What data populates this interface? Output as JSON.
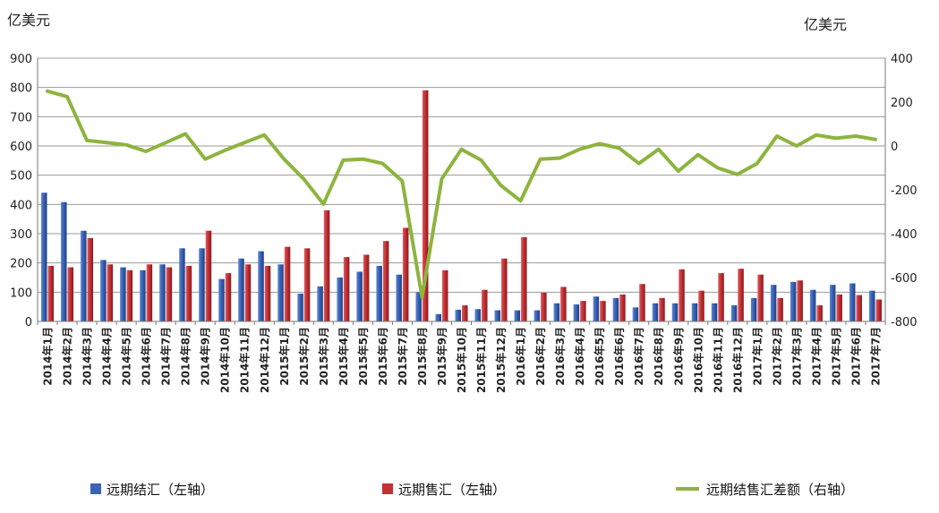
{
  "chart_data": {
    "type": "bar",
    "left_unit": "亿美元",
    "right_unit": "亿美元",
    "categories": [
      "2014年1月",
      "2014年2月",
      "2014年3月",
      "2014年4月",
      "2014年5月",
      "2014年6月",
      "2014年7月",
      "2014年8月",
      "2014年9月",
      "2014年10月",
      "2014年11月",
      "2014年12月",
      "2015年1月",
      "2015年2月",
      "2015年3月",
      "2015年4月",
      "2015年5月",
      "2015年6月",
      "2015年7月",
      "2015年8月",
      "2015年9月",
      "2015年10月",
      "2015年11月",
      "2015年12月",
      "2016年1月",
      "2016年2月",
      "2016年3月",
      "2016年4月",
      "2016年5月",
      "2016年6月",
      "2016年7月",
      "2016年8月",
      "2016年9月",
      "2016年10月",
      "2016年11月",
      "2016年12月",
      "2017年1月",
      "2017年2月",
      "2017年3月",
      "2017年4月",
      "2017年5月",
      "2017年6月",
      "2017年7月"
    ],
    "series": [
      {
        "name": "远期结汇（左轴）",
        "axis": "left",
        "type": "bar",
        "color": "#3a62b5",
        "values": [
          440,
          408,
          310,
          210,
          185,
          175,
          195,
          250,
          250,
          145,
          215,
          240,
          195,
          95,
          120,
          150,
          170,
          190,
          160,
          100,
          25,
          40,
          42,
          38,
          38,
          38,
          62,
          58,
          85,
          80,
          48,
          62,
          62,
          62,
          62,
          55,
          80,
          125,
          135,
          108,
          125,
          130,
          105
        ]
      },
      {
        "name": "远期售汇（左轴）",
        "axis": "left",
        "type": "bar",
        "color": "#c43135",
        "values": [
          190,
          185,
          285,
          195,
          175,
          195,
          185,
          190,
          310,
          165,
          195,
          190,
          255,
          250,
          380,
          220,
          228,
          275,
          320,
          790,
          175,
          55,
          108,
          215,
          288,
          98,
          118,
          70,
          70,
          92,
          128,
          80,
          178,
          105,
          165,
          180,
          160,
          80,
          140,
          55,
          92,
          90,
          75
        ]
      },
      {
        "name": "远期结售汇差额（右轴）",
        "axis": "right",
        "type": "line",
        "color": "#8db43e",
        "values": [
          250,
          225,
          25,
          15,
          5,
          -25,
          15,
          55,
          -60,
          -20,
          15,
          50,
          -60,
          -150,
          -265,
          -65,
          -60,
          -80,
          -160,
          -690,
          -150,
          -15,
          -65,
          -180,
          -250,
          -60,
          -55,
          -15,
          10,
          -10,
          -80,
          -15,
          -115,
          -40,
          -100,
          -130,
          -80,
          45,
          0,
          50,
          35,
          45,
          30
        ]
      }
    ],
    "y_left": {
      "min": 0,
      "max": 900,
      "ticks": [
        0,
        100,
        200,
        300,
        400,
        500,
        600,
        700,
        800,
        900
      ]
    },
    "y_right": {
      "min": -800,
      "max": 400,
      "ticks": [
        -800,
        -600,
        -400,
        -200,
        0,
        200,
        400
      ]
    },
    "grid": true,
    "legend": "bottom"
  }
}
